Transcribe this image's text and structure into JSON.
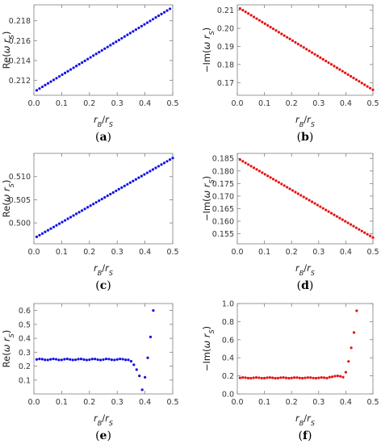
{
  "colors": {
    "blue": "#1010e6",
    "red": "#e61212"
  },
  "chart_data": [
    {
      "type": "scatter",
      "panel": "(a)",
      "xlabel": "r_B/r_S",
      "ylabel": "Re(ω r_S)",
      "xlim": [
        0,
        0.5
      ],
      "ylim": [
        0.2105,
        0.2196
      ],
      "xticks": [
        "0.0",
        "0.1",
        "0.2",
        "0.3",
        "0.4",
        "0.5"
      ],
      "yticks": [
        "0.212",
        "0.214",
        "0.216",
        "0.218"
      ],
      "color": "blue",
      "gen": {
        "kind": "linear",
        "x0": 0.01,
        "x1": 0.49,
        "n": 48,
        "y0": 0.211,
        "y1": 0.2192
      }
    },
    {
      "type": "scatter",
      "panel": "(b)",
      "xlabel": "r_B/r_S",
      "ylabel": "−Im(ω r_S)",
      "xlim": [
        0,
        0.5
      ],
      "ylim": [
        0.163,
        0.213
      ],
      "xticks": [
        "0.0",
        "0.1",
        "0.2",
        "0.3",
        "0.4",
        "0.5"
      ],
      "yticks": [
        "0.17",
        "0.18",
        "0.19",
        "0.20",
        "0.21"
      ],
      "color": "red",
      "gen": {
        "kind": "linear",
        "x0": 0.01,
        "x1": 0.5,
        "n": 49,
        "y0": 0.211,
        "y1": 0.166
      }
    },
    {
      "type": "scatter",
      "panel": "(c)",
      "xlabel": "r_B/r_S",
      "ylabel": "Re(ω r_S)",
      "xlim": [
        0,
        0.5
      ],
      "ylim": [
        0.4955,
        0.515
      ],
      "xticks": [
        "0.0",
        "0.1",
        "0.2",
        "0.3",
        "0.4",
        "0.5"
      ],
      "yticks": [
        "0.500",
        "0.505",
        "0.510"
      ],
      "color": "blue",
      "gen": {
        "kind": "linear",
        "x0": 0.01,
        "x1": 0.5,
        "n": 49,
        "y0": 0.497,
        "y1": 0.514
      }
    },
    {
      "type": "scatter",
      "panel": "(d)",
      "xlabel": "r_B/r_S",
      "ylabel": "−Im(ω r_S)",
      "xlim": [
        0,
        0.5
      ],
      "ylim": [
        0.151,
        0.187
      ],
      "xticks": [
        "0.0",
        "0.1",
        "0.2",
        "0.3",
        "0.4",
        "0.5"
      ],
      "yticks": [
        "0.155",
        "0.160",
        "0.165",
        "0.170",
        "0.175",
        "0.180",
        "0.185"
      ],
      "color": "red",
      "gen": {
        "kind": "linear",
        "x0": 0.01,
        "x1": 0.5,
        "n": 49,
        "y0": 0.1845,
        "y1": 0.1535
      }
    },
    {
      "type": "scatter",
      "panel": "(e)",
      "xlabel": "r_B/r_S",
      "ylabel": "Re(ω r_S)",
      "xlim": [
        0,
        0.5
      ],
      "ylim": [
        0,
        0.65
      ],
      "xticks": [
        "0.0",
        "0.1",
        "0.2",
        "0.3",
        "0.4",
        "0.5"
      ],
      "yticks": [
        "0.1",
        "0.2",
        "0.3",
        "0.4",
        "0.5",
        "0.6"
      ],
      "color": "blue",
      "gen": {
        "kind": "flat",
        "x0": 0.01,
        "x1": 0.33,
        "n": 33,
        "y": 0.248,
        "wob": 0.004
      },
      "extra": [
        [
          0.34,
          0.245
        ],
        [
          0.35,
          0.235
        ],
        [
          0.36,
          0.21
        ],
        [
          0.37,
          0.175
        ],
        [
          0.38,
          0.13
        ],
        [
          0.39,
          0.03
        ],
        [
          0.4,
          0.12
        ],
        [
          0.41,
          0.26
        ],
        [
          0.42,
          0.41
        ],
        [
          0.43,
          0.6
        ]
      ]
    },
    {
      "type": "scatter",
      "panel": "(f)",
      "xlabel": "r_B/r_S",
      "ylabel": "−Im(ω r_S)",
      "xlim": [
        0,
        0.5
      ],
      "ylim": [
        0,
        1.0
      ],
      "xticks": [
        "0.0",
        "0.1",
        "0.2",
        "0.3",
        "0.4",
        "0.5"
      ],
      "yticks": [
        "0.0",
        "0.2",
        "0.4",
        "0.6",
        "0.8",
        "1.0"
      ],
      "color": "red",
      "gen": {
        "kind": "flat",
        "x0": 0.01,
        "x1": 0.33,
        "n": 33,
        "y": 0.178,
        "wob": 0.004
      },
      "extra": [
        [
          0.34,
          0.185
        ],
        [
          0.35,
          0.19
        ],
        [
          0.36,
          0.197
        ],
        [
          0.37,
          0.2
        ],
        [
          0.38,
          0.195
        ],
        [
          0.39,
          0.185
        ],
        [
          0.4,
          0.24
        ],
        [
          0.41,
          0.36
        ],
        [
          0.42,
          0.51
        ],
        [
          0.43,
          0.68
        ],
        [
          0.44,
          0.92
        ]
      ]
    }
  ]
}
